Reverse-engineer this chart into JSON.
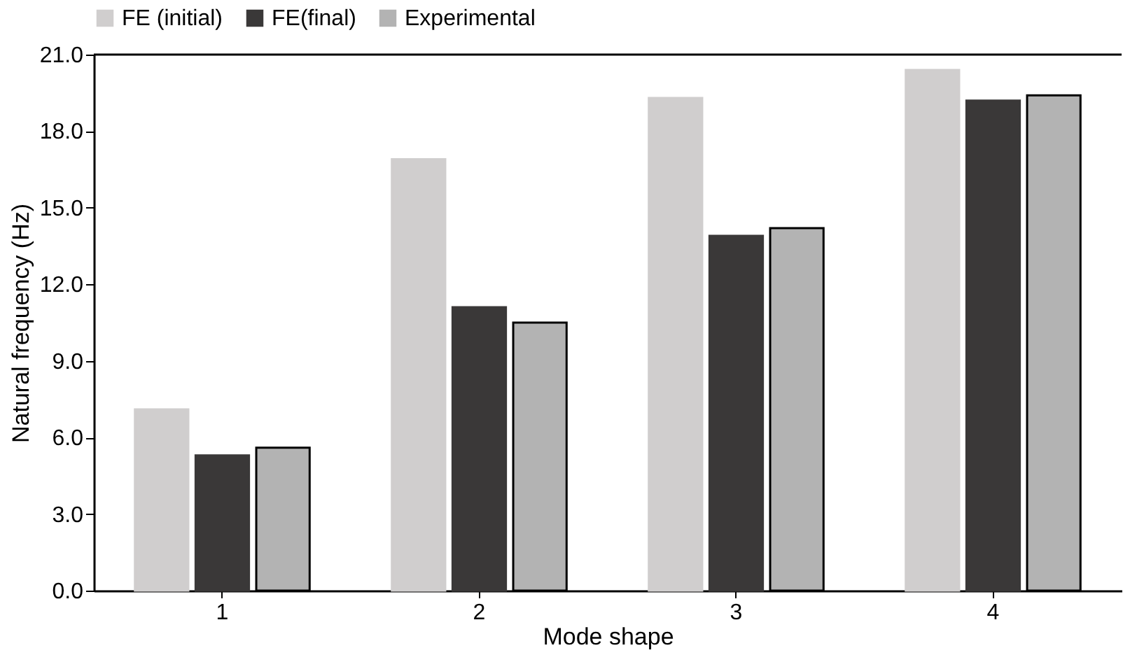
{
  "chart_data": {
    "type": "bar",
    "xlabel": "Mode shape",
    "ylabel": "Natural frequency (Hz)",
    "categories": [
      "1",
      "2",
      "3",
      "4"
    ],
    "series": [
      {
        "name": "FE (initial)",
        "color": "#d0cece",
        "values": [
          7.1,
          16.9,
          19.3,
          20.4
        ]
      },
      {
        "name": "FE(final)",
        "color": "#3a3838",
        "values": [
          5.3,
          11.1,
          13.9,
          19.2
        ]
      },
      {
        "name": "Experimental",
        "color": "#b3b3b3",
        "values": [
          5.6,
          10.5,
          14.2,
          19.4
        ]
      }
    ],
    "ylim": [
      0,
      21
    ],
    "yticks": [
      {
        "value": 0,
        "label": "0.0"
      },
      {
        "value": 3,
        "label": "3.0"
      },
      {
        "value": 6,
        "label": "6.0"
      },
      {
        "value": 9,
        "label": "9.0"
      },
      {
        "value": 12,
        "label": "12.0"
      },
      {
        "value": 15,
        "label": "15.0"
      },
      {
        "value": 18,
        "label": "18.0"
      },
      {
        "value": 21,
        "label": "21.0"
      }
    ],
    "grid": false,
    "legend": "top"
  }
}
